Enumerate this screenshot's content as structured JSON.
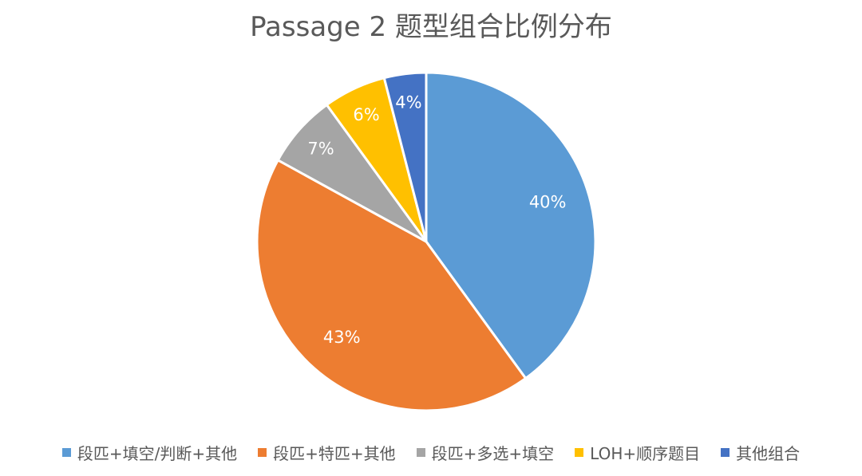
{
  "chart_data": {
    "type": "pie",
    "title": "Passage 2 题型组合比例分布",
    "legend_position": "bottom",
    "slices": [
      {
        "label": "段匹+填空/判断+其他",
        "value": 40,
        "display": "40%",
        "color": "#5B9BD5"
      },
      {
        "label": "段匹+特匹+其他",
        "value": 43,
        "display": "43%",
        "color": "#ED7D31"
      },
      {
        "label": "段匹+多选+填空",
        "value": 7,
        "display": "7%",
        "color": "#A5A5A5"
      },
      {
        "label": "LOH+顺序题目",
        "value": 6,
        "display": "6%",
        "color": "#FFC000"
      },
      {
        "label": "其他组合",
        "value": 4,
        "display": "4%",
        "color": "#4472C4"
      }
    ]
  }
}
